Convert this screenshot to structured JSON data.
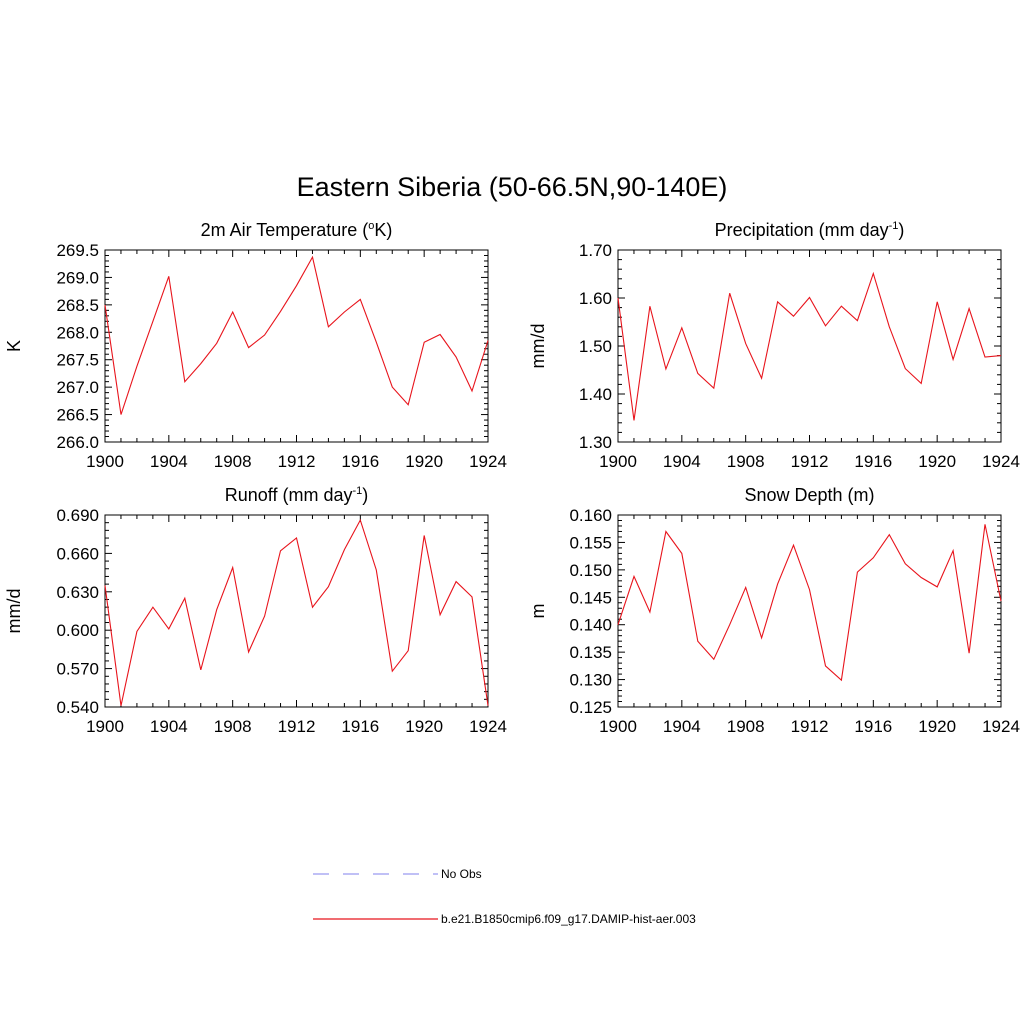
{
  "title": "Eastern Siberia (50-66.5N,90-140E)",
  "colors": {
    "model": "#e8141c",
    "obs": "#9a9af0",
    "axis": "#000000"
  },
  "legend": {
    "placement": "bottom-center",
    "entries": [
      {
        "label": "No Obs",
        "style": "dashed",
        "color": "#9a9af0"
      },
      {
        "label": "b.e21.B1850cmip6.f09_g17.DAMIP-hist-aer.003",
        "style": "solid",
        "color": "#e8141c"
      }
    ]
  },
  "chart_data": [
    {
      "id": "temperature",
      "type": "line",
      "title_main": "2m Air Temperature (",
      "title_sup": "o",
      "title_tail": "K)",
      "ylabel": "K",
      "xlim": [
        1900,
        1924
      ],
      "ylim": [
        266.0,
        269.5
      ],
      "yticks": [
        266.0,
        266.5,
        267.0,
        267.5,
        268.0,
        268.5,
        269.0,
        269.5
      ],
      "ytick_labels": [
        "266.0",
        "266.5",
        "267.0",
        "267.5",
        "268.0",
        "268.5",
        "269.0",
        "269.5"
      ],
      "xticks": [
        1900,
        1904,
        1908,
        1912,
        1916,
        1920,
        1924
      ],
      "xtick_labels": [
        "1900",
        "1904",
        "1908",
        "1912",
        "1916",
        "1920",
        "1924"
      ],
      "grid": false,
      "series": [
        {
          "x": [
            1900,
            1901,
            1902,
            1903,
            1904,
            1905,
            1906,
            1907,
            1908,
            1909,
            1910,
            1911,
            1912,
            1913,
            1914,
            1915,
            1916,
            1917,
            1918,
            1919,
            1920,
            1921,
            1922,
            1923,
            1924
          ],
          "y": [
            268.5,
            266.5,
            267.38,
            268.2,
            269.02,
            267.1,
            267.43,
            267.8,
            268.37,
            267.72,
            267.95,
            268.38,
            268.85,
            269.37,
            268.1,
            268.37,
            268.6,
            267.82,
            267.0,
            266.68,
            267.82,
            267.96,
            267.55,
            266.93,
            267.85
          ]
        }
      ]
    },
    {
      "id": "precipitation",
      "type": "line",
      "title_main": "Precipitation (mm day",
      "title_sup": "-1",
      "title_tail": ")",
      "ylabel": "mm/d",
      "xlim": [
        1900,
        1924
      ],
      "ylim": [
        1.3,
        1.7
      ],
      "yticks": [
        1.3,
        1.4,
        1.5,
        1.6,
        1.7
      ],
      "ytick_labels": [
        "1.30",
        "1.40",
        "1.50",
        "1.60",
        "1.70"
      ],
      "xticks": [
        1900,
        1904,
        1908,
        1912,
        1916,
        1920,
        1924
      ],
      "xtick_labels": [
        "1900",
        "1904",
        "1908",
        "1912",
        "1916",
        "1920",
        "1924"
      ],
      "grid": false,
      "series": [
        {
          "x": [
            1900,
            1901,
            1902,
            1903,
            1904,
            1905,
            1906,
            1907,
            1908,
            1909,
            1910,
            1911,
            1912,
            1913,
            1914,
            1915,
            1916,
            1917,
            1918,
            1919,
            1920,
            1921,
            1922,
            1923,
            1924
          ],
          "y": [
            1.6,
            1.345,
            1.583,
            1.452,
            1.538,
            1.443,
            1.412,
            1.61,
            1.505,
            1.433,
            1.592,
            1.562,
            1.601,
            1.542,
            1.583,
            1.553,
            1.651,
            1.54,
            1.453,
            1.422,
            1.592,
            1.472,
            1.578,
            1.477,
            1.48
          ]
        }
      ]
    },
    {
      "id": "runoff",
      "type": "line",
      "title_main": "Runoff (mm day",
      "title_sup": "-1",
      "title_tail": ")",
      "ylabel": "mm/d",
      "xlim": [
        1900,
        1924
      ],
      "ylim": [
        0.54,
        0.69
      ],
      "yticks": [
        0.54,
        0.57,
        0.6,
        0.63,
        0.66,
        0.69
      ],
      "ytick_labels": [
        "0.540",
        "0.570",
        "0.600",
        "0.630",
        "0.660",
        "0.690"
      ],
      "xticks": [
        1900,
        1904,
        1908,
        1912,
        1916,
        1920,
        1924
      ],
      "xtick_labels": [
        "1900",
        "1904",
        "1908",
        "1912",
        "1916",
        "1920",
        "1924"
      ],
      "grid": false,
      "series": [
        {
          "x": [
            1900,
            1901,
            1902,
            1903,
            1904,
            1905,
            1906,
            1907,
            1908,
            1909,
            1910,
            1911,
            1912,
            1913,
            1914,
            1915,
            1916,
            1917,
            1918,
            1919,
            1920,
            1921,
            1922,
            1923,
            1924
          ],
          "y": [
            0.635,
            0.541,
            0.599,
            0.618,
            0.601,
            0.625,
            0.569,
            0.616,
            0.649,
            0.583,
            0.611,
            0.662,
            0.672,
            0.618,
            0.634,
            0.663,
            0.686,
            0.647,
            0.568,
            0.584,
            0.674,
            0.612,
            0.638,
            0.626,
            0.541
          ]
        }
      ]
    },
    {
      "id": "snow_depth",
      "type": "line",
      "title_main": "Snow Depth (m)",
      "title_sup": "",
      "title_tail": "",
      "ylabel": "m",
      "xlim": [
        1900,
        1924
      ],
      "ylim": [
        0.125,
        0.16
      ],
      "yticks": [
        0.125,
        0.13,
        0.135,
        0.14,
        0.145,
        0.15,
        0.155,
        0.16
      ],
      "ytick_labels": [
        "0.125",
        "0.130",
        "0.135",
        "0.140",
        "0.145",
        "0.150",
        "0.155",
        "0.160"
      ],
      "xticks": [
        1900,
        1904,
        1908,
        1912,
        1916,
        1920,
        1924
      ],
      "xtick_labels": [
        "1900",
        "1904",
        "1908",
        "1912",
        "1916",
        "1920",
        "1924"
      ],
      "grid": false,
      "series": [
        {
          "x": [
            1900,
            1901,
            1902,
            1903,
            1904,
            1905,
            1906,
            1907,
            1908,
            1909,
            1910,
            1911,
            1912,
            1913,
            1914,
            1915,
            1916,
            1917,
            1918,
            1919,
            1920,
            1921,
            1922,
            1923,
            1924
          ],
          "y": [
            0.14,
            0.1488,
            0.1423,
            0.157,
            0.153,
            0.137,
            0.1337,
            0.14,
            0.1468,
            0.1376,
            0.1474,
            0.1545,
            0.1464,
            0.1325,
            0.1299,
            0.1496,
            0.1522,
            0.1564,
            0.1511,
            0.1486,
            0.1469,
            0.1535,
            0.1348,
            0.1583,
            0.1443
          ]
        }
      ]
    }
  ]
}
